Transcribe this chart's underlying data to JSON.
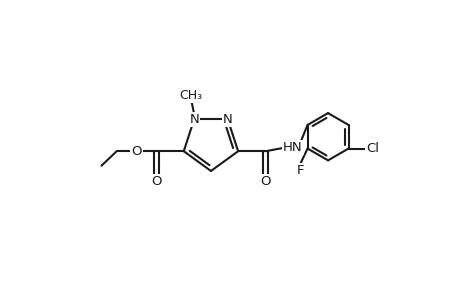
{
  "bg_color": "#ffffff",
  "line_color": "#1a1a1a",
  "line_width": 1.5,
  "font_size": 9.5,
  "figsize": [
    4.6,
    3.0
  ],
  "dpi": 100,
  "xlim": [
    -1,
    11
  ],
  "ylim": [
    0,
    7
  ]
}
